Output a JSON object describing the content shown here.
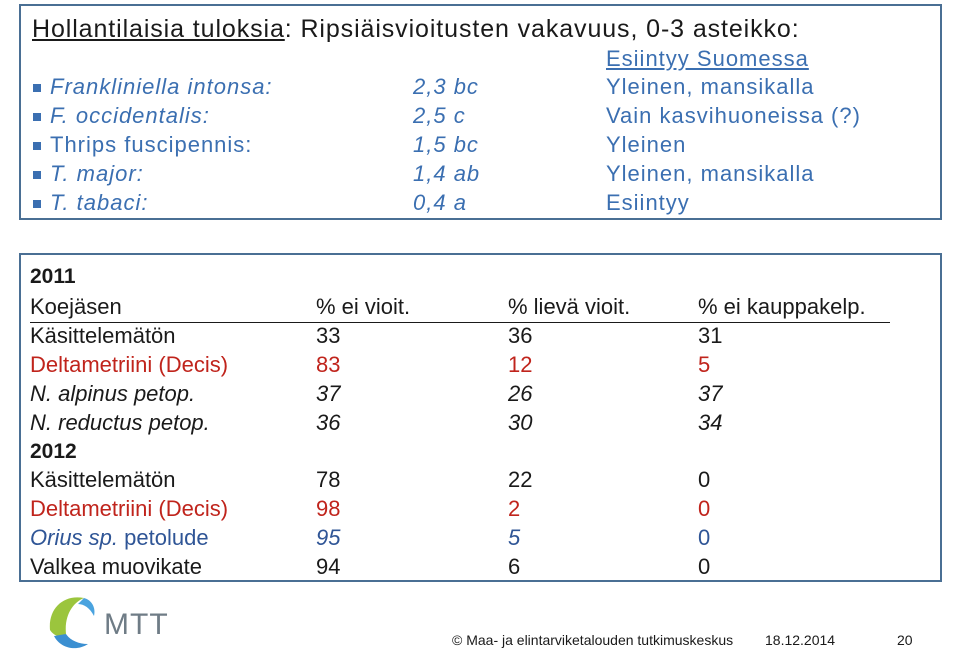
{
  "title": {
    "underlined": "Hollantilaisia tuloksia",
    "rest": ": Ripsiäisvioitusten vakavuus, 0-3 asteikko:"
  },
  "species_header": "Esiintyy Suomessa",
  "species": [
    {
      "name": "Frankliniella intonsa:",
      "value": "2,3 bc",
      "occurrence": "Yleinen, mansikalla"
    },
    {
      "name": "F. occidentalis:",
      "value": "2,5 c",
      "occurrence": "Vain kasvihuoneissa (?)"
    },
    {
      "name": "Thrips fuscipennis:",
      "value": "1,5 bc",
      "occurrence": "Yleinen"
    },
    {
      "name": "T. major:",
      "value": "1,4 ab",
      "occurrence": "Yleinen, mansikalla"
    },
    {
      "name": "T. tabaci:",
      "value": "0,4 a",
      "occurrence": "Esiintyy"
    }
  ],
  "table": {
    "year1": "2011",
    "headers": [
      "Koejäsen",
      "% ei vioit.",
      "% lievä vioit.",
      "% ei kauppakelp."
    ],
    "rows2011": [
      [
        "Käsittelemätön",
        "33",
        "36",
        "31"
      ],
      [
        "Deltametriini (Decis)",
        "83",
        "12",
        "5"
      ],
      [
        "N. alpinus petop.",
        "37",
        "26",
        "37"
      ],
      [
        "N. reductus petop.",
        "36",
        "30",
        "34"
      ]
    ],
    "year2": "2012",
    "rows2012": [
      [
        "Käsittelemätön",
        "78",
        "22",
        "0"
      ],
      [
        "Deltametriini (Decis)",
        "98",
        "2",
        "0"
      ],
      {
        "species": "Orius sp.",
        "rest": " petolude",
        "v1": "95",
        "v2": "5",
        "v3": "0"
      },
      [
        "Valkea muovikate",
        "94",
        "6",
        "0"
      ]
    ]
  },
  "footer": {
    "logo_text": "MTT",
    "copyright": "© Maa- ja elintarviketalouden tutkimuskeskus",
    "date": "18.12.2014",
    "page": "20"
  },
  "colors": {
    "blue_text": "#3b6fb1",
    "red_text": "#c0241c",
    "border": "#4a6f94"
  }
}
